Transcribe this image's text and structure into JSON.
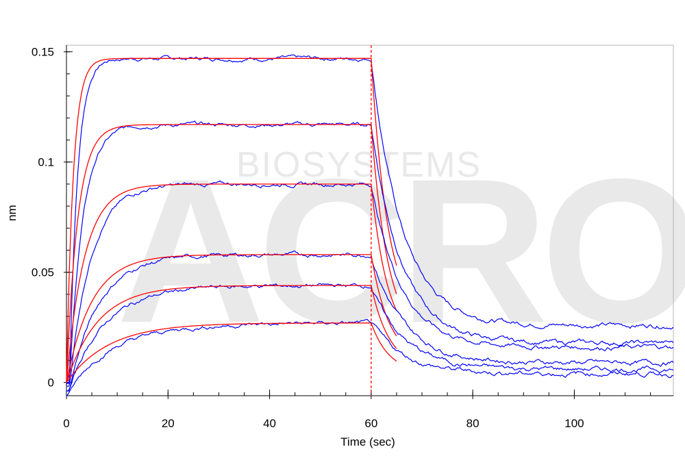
{
  "chart_data": {
    "type": "line",
    "xlabel": "Time (sec)",
    "ylabel": "nm",
    "xlim": [
      0,
      119.5
    ],
    "ylim": [
      -0.006,
      0.153
    ],
    "x_ticks": [
      0,
      20,
      40,
      60,
      80,
      100
    ],
    "y_ticks": [
      0,
      0.05,
      0.1,
      0.15
    ],
    "x_tick_labels": [
      "0",
      "20",
      "40",
      "60",
      "80",
      "100"
    ],
    "y_tick_labels": [
      "0",
      "0.05",
      "0.1",
      "0.15"
    ],
    "grid": false,
    "association_end": 60,
    "watermark": {
      "brand": "ACRO",
      "line": "BIOSYSTEMS"
    },
    "colors": {
      "measured": "#0000ff",
      "fit": "#ff0000",
      "marker": "#ff0000"
    },
    "series": [
      {
        "plateau": 0.147,
        "ka_rate": 0.75,
        "kd_rate": 0.3,
        "final_level": 0.026,
        "early_offset": 0.0
      },
      {
        "plateau": 0.117,
        "ka_rate": 0.45,
        "kd_rate": 0.3,
        "final_level": 0.018,
        "early_offset": 0.001
      },
      {
        "plateau": 0.09,
        "ka_rate": 0.28,
        "kd_rate": 0.3,
        "final_level": 0.016,
        "early_offset": 0.002
      },
      {
        "plateau": 0.058,
        "ka_rate": 0.2,
        "kd_rate": 0.28,
        "final_level": 0.009,
        "early_offset": 0.004
      },
      {
        "plateau": 0.044,
        "ka_rate": 0.16,
        "kd_rate": 0.28,
        "final_level": 0.006,
        "early_offset": 0.004
      },
      {
        "plateau": 0.027,
        "ka_rate": 0.12,
        "kd_rate": 0.28,
        "final_level": 0.004,
        "early_offset": 0.006
      }
    ]
  }
}
